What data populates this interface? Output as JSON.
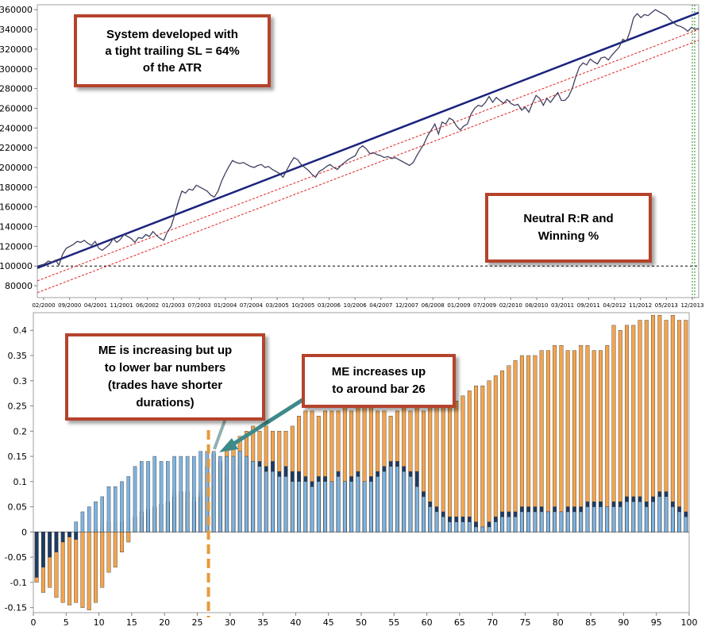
{
  "chart_data": [
    {
      "type": "line",
      "x_labels": [
        "02/2000",
        "09/2000",
        "04/2001",
        "11/2001",
        "06/2002",
        "01/2003",
        "07/2003",
        "01/2004",
        "07/2004",
        "03/2005",
        "10/2005",
        "03/2006",
        "10/2006",
        "04/2007",
        "12/2007",
        "06/2008",
        "01/2009",
        "07/2009",
        "02/2010",
        "08/2010",
        "03/2011",
        "09/2011",
        "04/2012",
        "11/2012",
        "05/2013",
        "12/2013"
      ],
      "y_ticks": [
        80000,
        100000,
        120000,
        140000,
        160000,
        180000,
        200000,
        220000,
        240000,
        260000,
        280000,
        300000,
        320000,
        340000,
        360000
      ],
      "ylim": [
        68000,
        365000
      ],
      "equity": [
        [
          0,
          100000
        ],
        [
          2,
          102000
        ],
        [
          3,
          105000
        ],
        [
          4,
          104000
        ],
        [
          5,
          106000
        ],
        [
          6,
          101000
        ],
        [
          7,
          112000
        ],
        [
          8,
          118000
        ],
        [
          9,
          120000
        ],
        [
          10,
          122000
        ],
        [
          11,
          125000
        ],
        [
          12,
          124000
        ],
        [
          13,
          126000
        ],
        [
          14,
          123000
        ],
        [
          15,
          121000
        ],
        [
          16,
          125000
        ],
        [
          17,
          118000
        ],
        [
          18,
          116000
        ],
        [
          19,
          119000
        ],
        [
          20,
          122000
        ],
        [
          21,
          128000
        ],
        [
          22,
          124000
        ],
        [
          23,
          127000
        ],
        [
          24,
          132000
        ],
        [
          25,
          130000
        ],
        [
          26,
          128000
        ],
        [
          27,
          124000
        ],
        [
          28,
          129000
        ],
        [
          29,
          128000
        ],
        [
          30,
          132000
        ],
        [
          31,
          130000
        ],
        [
          32,
          135000
        ],
        [
          33,
          131000
        ],
        [
          34,
          128000
        ],
        [
          35,
          126000
        ],
        [
          36,
          135000
        ],
        [
          37,
          140000
        ],
        [
          38,
          152000
        ],
        [
          39,
          165000
        ],
        [
          40,
          176000
        ],
        [
          41,
          174000
        ],
        [
          42,
          178000
        ],
        [
          43,
          177000
        ],
        [
          44,
          182000
        ],
        [
          45,
          180000
        ],
        [
          46,
          178000
        ],
        [
          47,
          176000
        ],
        [
          48,
          172000
        ],
        [
          49,
          170000
        ],
        [
          50,
          176000
        ],
        [
          51,
          186000
        ],
        [
          52,
          194000
        ],
        [
          53,
          201000
        ],
        [
          54,
          207000
        ],
        [
          55,
          205000
        ],
        [
          56,
          204000
        ],
        [
          57,
          205000
        ],
        [
          58,
          203000
        ],
        [
          59,
          201000
        ],
        [
          60,
          200000
        ],
        [
          61,
          202000
        ],
        [
          62,
          203000
        ],
        [
          63,
          200000
        ],
        [
          64,
          201000
        ],
        [
          65,
          198000
        ],
        [
          66,
          196000
        ],
        [
          67,
          194000
        ],
        [
          68,
          190000
        ],
        [
          69,
          197000
        ],
        [
          70,
          204000
        ],
        [
          71,
          210000
        ],
        [
          72,
          208000
        ],
        [
          73,
          203000
        ],
        [
          74,
          200000
        ],
        [
          75,
          197000
        ],
        [
          76,
          193000
        ],
        [
          77,
          190000
        ],
        [
          78,
          196000
        ],
        [
          79,
          198000
        ],
        [
          80,
          201000
        ],
        [
          81,
          203000
        ],
        [
          82,
          200000
        ],
        [
          83,
          198000
        ],
        [
          84,
          202000
        ],
        [
          85,
          205000
        ],
        [
          86,
          208000
        ],
        [
          87,
          210000
        ],
        [
          88,
          212000
        ],
        [
          89,
          219000
        ],
        [
          90,
          222000
        ],
        [
          91,
          219000
        ],
        [
          92,
          214000
        ],
        [
          93,
          215000
        ],
        [
          94,
          213000
        ],
        [
          95,
          212000
        ],
        [
          96,
          210000
        ],
        [
          97,
          211000
        ],
        [
          98,
          209000
        ],
        [
          99,
          210000
        ],
        [
          100,
          208000
        ],
        [
          101,
          206000
        ],
        [
          102,
          204000
        ],
        [
          103,
          202000
        ],
        [
          104,
          205000
        ],
        [
          105,
          212000
        ],
        [
          106,
          218000
        ],
        [
          107,
          224000
        ],
        [
          108,
          232000
        ],
        [
          109,
          238000
        ],
        [
          110,
          244000
        ],
        [
          111,
          234000
        ],
        [
          112,
          246000
        ],
        [
          113,
          244000
        ],
        [
          114,
          250000
        ],
        [
          115,
          248000
        ],
        [
          116,
          242000
        ],
        [
          117,
          238000
        ],
        [
          118,
          242000
        ],
        [
          119,
          244000
        ],
        [
          120,
          254000
        ],
        [
          121,
          260000
        ],
        [
          122,
          263000
        ],
        [
          123,
          262000
        ],
        [
          124,
          266000
        ],
        [
          125,
          272000
        ],
        [
          126,
          266000
        ],
        [
          127,
          271000
        ],
        [
          128,
          268000
        ],
        [
          129,
          265000
        ],
        [
          130,
          269000
        ],
        [
          131,
          265000
        ],
        [
          132,
          263000
        ],
        [
          133,
          264000
        ],
        [
          134,
          258000
        ],
        [
          135,
          261000
        ],
        [
          136,
          256000
        ],
        [
          137,
          265000
        ],
        [
          138,
          273000
        ],
        [
          139,
          270000
        ],
        [
          140,
          263000
        ],
        [
          141,
          270000
        ],
        [
          142,
          266000
        ],
        [
          143,
          271000
        ],
        [
          144,
          276000
        ],
        [
          145,
          268000
        ],
        [
          146,
          268000
        ],
        [
          147,
          272000
        ],
        [
          148,
          280000
        ],
        [
          149,
          292000
        ],
        [
          150,
          302000
        ],
        [
          151,
          306000
        ],
        [
          152,
          304000
        ],
        [
          153,
          310000
        ],
        [
          154,
          307000
        ],
        [
          155,
          305000
        ],
        [
          156,
          311000
        ],
        [
          157,
          312000
        ],
        [
          158,
          309000
        ],
        [
          159,
          314000
        ],
        [
          160,
          318000
        ],
        [
          161,
          322000
        ],
        [
          162,
          330000
        ],
        [
          163,
          328000
        ],
        [
          164,
          338000
        ],
        [
          165,
          352000
        ],
        [
          166,
          356000
        ],
        [
          167,
          352000
        ],
        [
          168,
          355000
        ],
        [
          169,
          354000
        ],
        [
          170,
          357000
        ],
        [
          171,
          360000
        ],
        [
          172,
          358000
        ],
        [
          173,
          356000
        ],
        [
          174,
          354000
        ],
        [
          175,
          350000
        ],
        [
          176,
          347000
        ],
        [
          177,
          344000
        ],
        [
          178,
          343000
        ],
        [
          179,
          341000
        ],
        [
          180,
          338000
        ],
        [
          181,
          342000
        ],
        [
          182,
          340000
        ],
        [
          183,
          341000
        ]
      ],
      "regression": [
        [
          0,
          98000
        ],
        [
          183,
          357000
        ]
      ],
      "lower_bands": [
        [
          [
            0,
            85000
          ],
          [
            183,
            340000
          ]
        ],
        [
          [
            0,
            73000
          ],
          [
            183,
            329000
          ]
        ]
      ],
      "baseline": 100000
    },
    {
      "type": "bar",
      "x_ticks": [
        0,
        5,
        10,
        15,
        20,
        25,
        30,
        35,
        40,
        45,
        50,
        55,
        60,
        65,
        70,
        75,
        80,
        85,
        90,
        95,
        100
      ],
      "y_ticks": [
        -0.15,
        -0.1,
        -0.05,
        0,
        0.05,
        0.1,
        0.15,
        0.2,
        0.25,
        0.3,
        0.35,
        0.4
      ],
      "ylim": [
        -0.16,
        0.435
      ],
      "series": [
        {
          "color": "#F2A44E",
          "values": [
            -0.1,
            -0.12,
            -0.11,
            -0.13,
            -0.14,
            -0.145,
            -0.14,
            -0.15,
            -0.155,
            -0.14,
            -0.11,
            -0.08,
            -0.07,
            -0.04,
            -0.02,
            0.03,
            0.04,
            0.045,
            0.05,
            0.055,
            0.06,
            0.07,
            0.08,
            0.08,
            0.06,
            0.07,
            0.13,
            0.155,
            0.14,
            0.17,
            0.18,
            0.19,
            0.2,
            0.21,
            0.2,
            0.21,
            0.2,
            0.2,
            0.2,
            0.21,
            0.23,
            0.24,
            0.24,
            0.23,
            0.24,
            0.24,
            0.24,
            0.25,
            0.24,
            0.25,
            0.25,
            0.25,
            0.24,
            0.24,
            0.23,
            0.24,
            0.25,
            0.24,
            0.25,
            0.24,
            0.25,
            0.25,
            0.25,
            0.26,
            0.26,
            0.27,
            0.28,
            0.29,
            0.29,
            0.3,
            0.31,
            0.32,
            0.33,
            0.34,
            0.35,
            0.35,
            0.35,
            0.36,
            0.36,
            0.37,
            0.37,
            0.36,
            0.36,
            0.37,
            0.37,
            0.36,
            0.36,
            0.37,
            0.41,
            0.4,
            0.41,
            0.41,
            0.42,
            0.42,
            0.43,
            0.43,
            0.42,
            0.43,
            0.42,
            0.42
          ]
        },
        {
          "color": "#1B3C66",
          "values": [
            -0.09,
            -0.07,
            -0.05,
            -0.04,
            -0.02,
            -0.01,
            -0.015,
            0.0,
            0.0,
            0.005,
            0.01,
            0.02,
            0.02,
            0.02,
            0.025,
            0.03,
            0.03,
            0.04,
            0.045,
            0.05,
            0.06,
            0.08,
            0.08,
            0.06,
            0.07,
            0.08,
            0.08,
            0.09,
            0.1,
            0.11,
            0.12,
            0.13,
            0.14,
            0.14,
            0.14,
            0.13,
            0.14,
            0.12,
            0.13,
            0.12,
            0.12,
            0.11,
            0.1,
            0.11,
            0.11,
            0.1,
            0.12,
            0.1,
            0.11,
            0.12,
            0.1,
            0.11,
            0.12,
            0.13,
            0.14,
            0.14,
            0.13,
            0.12,
            0.12,
            0.08,
            0.06,
            0.05,
            0.04,
            0.03,
            0.03,
            0.03,
            0.03,
            0.02,
            0.01,
            0.02,
            0.03,
            0.04,
            0.04,
            0.04,
            0.05,
            0.05,
            0.05,
            0.05,
            0.04,
            0.05,
            0.04,
            0.05,
            0.05,
            0.05,
            0.06,
            0.06,
            0.06,
            0.05,
            0.06,
            0.06,
            0.07,
            0.07,
            0.07,
            0.06,
            0.07,
            0.08,
            0.08,
            0.06,
            0.05,
            0.04
          ]
        },
        {
          "color": "#7DB3E0",
          "values": [
            0.0,
            0.0,
            0.0,
            0.0,
            0.0,
            0.0,
            0.02,
            0.04,
            0.05,
            0.06,
            0.07,
            0.09,
            0.09,
            0.1,
            0.11,
            0.13,
            0.14,
            0.14,
            0.15,
            0.14,
            0.14,
            0.15,
            0.15,
            0.15,
            0.15,
            0.16,
            0.16,
            0.16,
            0.15,
            0.15,
            0.15,
            0.16,
            0.15,
            0.14,
            0.13,
            0.12,
            0.12,
            0.11,
            0.11,
            0.1,
            0.1,
            0.1,
            0.09,
            0.1,
            0.1,
            0.1,
            0.11,
            0.1,
            0.1,
            0.11,
            0.1,
            0.1,
            0.11,
            0.12,
            0.13,
            0.13,
            0.12,
            0.11,
            0.09,
            0.07,
            0.05,
            0.04,
            0.03,
            0.02,
            0.02,
            0.02,
            0.02,
            0.01,
            0.01,
            0.01,
            0.02,
            0.03,
            0.03,
            0.03,
            0.04,
            0.04,
            0.04,
            0.04,
            0.04,
            0.04,
            0.04,
            0.04,
            0.04,
            0.04,
            0.05,
            0.05,
            0.05,
            0.05,
            0.05,
            0.05,
            0.06,
            0.06,
            0.06,
            0.05,
            0.06,
            0.07,
            0.07,
            0.05,
            0.04,
            0.03
          ]
        }
      ]
    }
  ],
  "annotations": {
    "top_left": [
      "System developed with",
      "a tight trailing SL = 64%",
      "of the ATR"
    ],
    "top_right": [
      "Neutral R:R and",
      "Winning %"
    ],
    "bottom_left": [
      "ME is increasing but up",
      "to lower bar numbers",
      "(trades have shorter",
      "durations)"
    ],
    "bottom_right": [
      "ME increases up",
      "to around bar 26"
    ]
  },
  "colors": {
    "equity_line": "#404060",
    "regression_line": "#1A237E",
    "band_line": "#E02020",
    "callout_border": "#B5432C",
    "marker_line": "#E69A3C",
    "arrow": "#3E8A8A"
  }
}
